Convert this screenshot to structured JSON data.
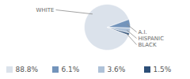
{
  "chart_data": {
    "type": "pie",
    "categories": [
      "WHITE",
      "A.I.",
      "HISPANIC",
      "BLACK"
    ],
    "values": [
      88.8,
      6.1,
      3.6,
      1.5
    ],
    "value_labels": [
      "88.8%",
      "6.1%",
      "3.6%",
      "1.5%"
    ],
    "colors": [
      "#dbe2eb",
      "#7394bb",
      "#afc2d8",
      "#2d4f78"
    ],
    "legend": "bottom"
  }
}
